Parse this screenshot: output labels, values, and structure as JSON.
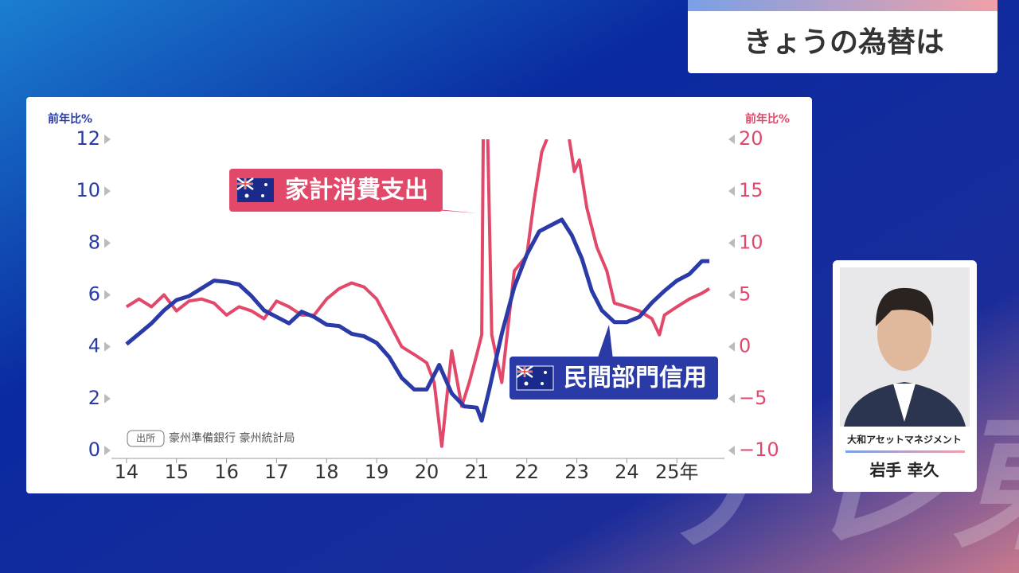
{
  "header": {
    "title": "きょうの為替は"
  },
  "watermark": "テレ東",
  "presenter": {
    "company": "大和アセットマネジメント",
    "name": "岩手 幸久"
  },
  "chart_data": {
    "type": "line",
    "y_label": "前年比%",
    "y2_label": "前年比%",
    "source_tag": "出所",
    "source": "豪州準備銀行 豪州統計局",
    "xlim": [
      13.7,
      25.95
    ],
    "xticks": [
      14,
      15,
      16,
      17,
      18,
      19,
      20,
      21,
      22,
      23,
      24,
      {
        "value": 25,
        "label": "25年"
      }
    ],
    "ylim": [
      0,
      12
    ],
    "yticks": [
      12,
      10,
      8,
      6,
      4,
      2,
      0
    ],
    "y2lim": [
      -10,
      20
    ],
    "y2ticks": [
      20,
      15,
      10,
      5,
      0,
      {
        "value": -5,
        "label": "−5"
      },
      {
        "value": -10,
        "label": "−10"
      }
    ],
    "series": [
      {
        "name": "民間部門信用",
        "color": "#2a3aa6",
        "axis": "y",
        "x": [
          14.0,
          14.25,
          14.5,
          14.75,
          15.0,
          15.25,
          15.5,
          15.75,
          16.0,
          16.25,
          16.5,
          16.75,
          17.0,
          17.25,
          17.5,
          17.75,
          18.0,
          18.25,
          18.5,
          18.75,
          19.0,
          19.25,
          19.5,
          19.75,
          20.0,
          20.25,
          20.5,
          20.75,
          21.0,
          21.1,
          21.25,
          21.5,
          21.75,
          22.0,
          22.25,
          22.5,
          22.7,
          22.9,
          23.1,
          23.3,
          23.5,
          23.75,
          24.0,
          24.25,
          24.5,
          24.75,
          25.0,
          25.25,
          25.5,
          25.65
        ],
        "values": [
          4.1,
          4.5,
          4.9,
          5.4,
          5.8,
          5.95,
          6.25,
          6.55,
          6.5,
          6.4,
          5.95,
          5.4,
          5.15,
          4.9,
          5.35,
          5.15,
          4.85,
          4.8,
          4.5,
          4.4,
          4.15,
          3.6,
          2.8,
          2.35,
          2.35,
          3.3,
          2.2,
          1.7,
          1.65,
          1.15,
          2.35,
          4.5,
          6.3,
          7.55,
          8.45,
          8.7,
          8.9,
          8.3,
          7.4,
          6.15,
          5.4,
          4.95,
          4.95,
          5.15,
          5.7,
          6.15,
          6.55,
          6.8,
          7.3,
          7.3
        ]
      },
      {
        "name": "家計消費支出",
        "color": "#e2486a",
        "axis": "y2",
        "x": [
          14.0,
          14.25,
          14.5,
          14.75,
          15.0,
          15.25,
          15.5,
          15.75,
          16.0,
          16.25,
          16.5,
          16.75,
          17.0,
          17.25,
          17.5,
          17.75,
          18.0,
          18.25,
          18.5,
          18.75,
          19.0,
          19.25,
          19.5,
          19.75,
          20.0,
          20.15,
          20.3,
          20.4,
          20.5,
          20.7,
          20.85,
          21.0,
          21.1,
          21.13,
          21.18,
          21.22,
          21.3,
          21.5,
          21.75,
          22.0,
          22.15,
          22.3,
          22.4,
          22.6,
          22.85,
          22.95,
          23.05,
          23.2,
          23.4,
          23.6,
          23.75,
          24.0,
          24.25,
          24.5,
          24.65,
          24.75,
          25.0,
          25.25,
          25.5,
          25.65
        ],
        "values": [
          3.85,
          4.6,
          3.85,
          5.0,
          3.45,
          4.4,
          4.6,
          4.2,
          3.05,
          3.85,
          3.45,
          2.7,
          4.4,
          3.85,
          3.05,
          3.05,
          4.6,
          5.6,
          6.15,
          5.75,
          4.6,
          2.3,
          0,
          -0.75,
          -1.55,
          -3.45,
          -9.6,
          -5.0,
          -0.4,
          -5.75,
          -3.45,
          -0.75,
          1.15,
          20,
          null,
          20,
          1.15,
          -3.45,
          7.3,
          8.8,
          14.2,
          18.8,
          20,
          null,
          20,
          16.9,
          18,
          13.4,
          9.6,
          7.3,
          4.2,
          3.85,
          3.45,
          2.7,
          1.15,
          3.05,
          3.85,
          4.6,
          5.15,
          5.6
        ]
      }
    ]
  }
}
